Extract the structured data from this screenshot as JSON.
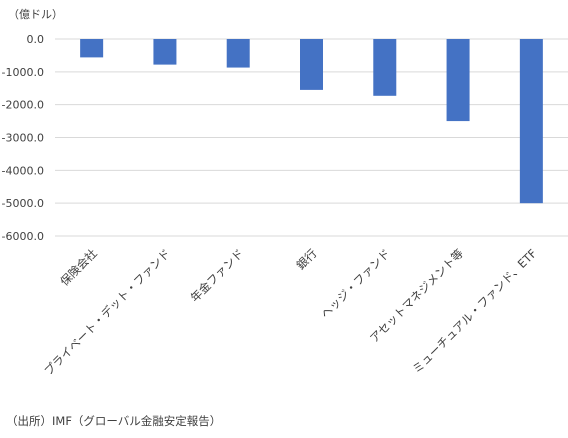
{
  "chart_data": {
    "type": "bar",
    "unit_label": "（億ドル）",
    "source": "（出所）IMF（グローバル金融安定報告）",
    "categories": [
      "保険会社",
      "プライベート・デット・ファンド",
      "年金ファンド",
      "銀行",
      "ヘッジ・ファンド",
      "アセットマネジメント等",
      "ミューチュアル・ファンド、ETF"
    ],
    "values": [
      -560,
      -780,
      -870,
      -1550,
      -1730,
      -2500,
      -5000
    ],
    "ylim": [
      -6000,
      0
    ],
    "ytick_labels": [
      "0.0",
      "-1000.0",
      "-2000.0",
      "-3000.0",
      "-4000.0",
      "-5000.0",
      "-6000.0"
    ],
    "ytick_values": [
      0,
      -1000,
      -2000,
      -3000,
      -4000,
      -5000,
      -6000
    ],
    "grid": true,
    "colors": {
      "bar": "#4472c4",
      "grid": "#d9d9d9",
      "text": "#404040"
    }
  }
}
